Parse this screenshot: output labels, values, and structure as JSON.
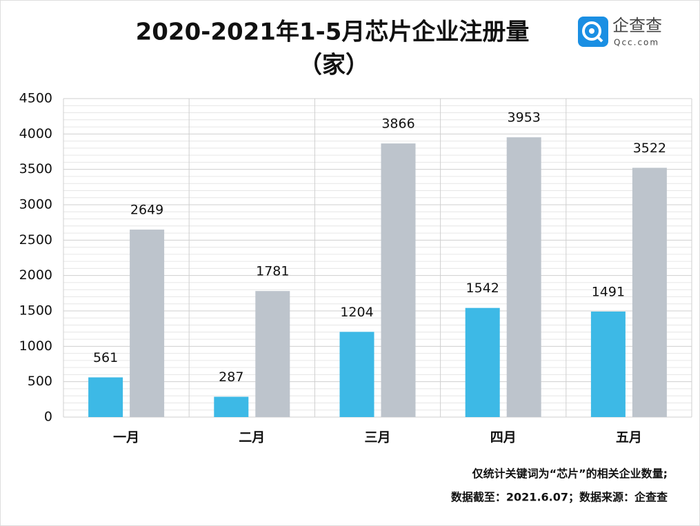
{
  "chart_data": {
    "type": "bar",
    "title": "2020-2021年1-5月芯片企业注册量",
    "unit": "（家）",
    "brand": "企查查",
    "brand_url": "Qcc.com",
    "categories": [
      "一月",
      "二月",
      "三月",
      "四月",
      "五月"
    ],
    "series": [
      {
        "color": "#3db9e6",
        "values": [
          561,
          287,
          1204,
          1542,
          1491
        ]
      },
      {
        "color": "#bdc4cc",
        "values": [
          2649,
          1781,
          3866,
          3953,
          3522
        ]
      }
    ],
    "ylim": [
      0,
      4500
    ],
    "yticks": [
      0,
      500,
      1000,
      1500,
      2000,
      2500,
      3000,
      3500,
      4000,
      4500
    ],
    "grid": true,
    "notes": [
      "仅统计关键词为“芯片”的相关企业数量;",
      "数据截至：2021.6.07；数据来源：企查查"
    ]
  }
}
